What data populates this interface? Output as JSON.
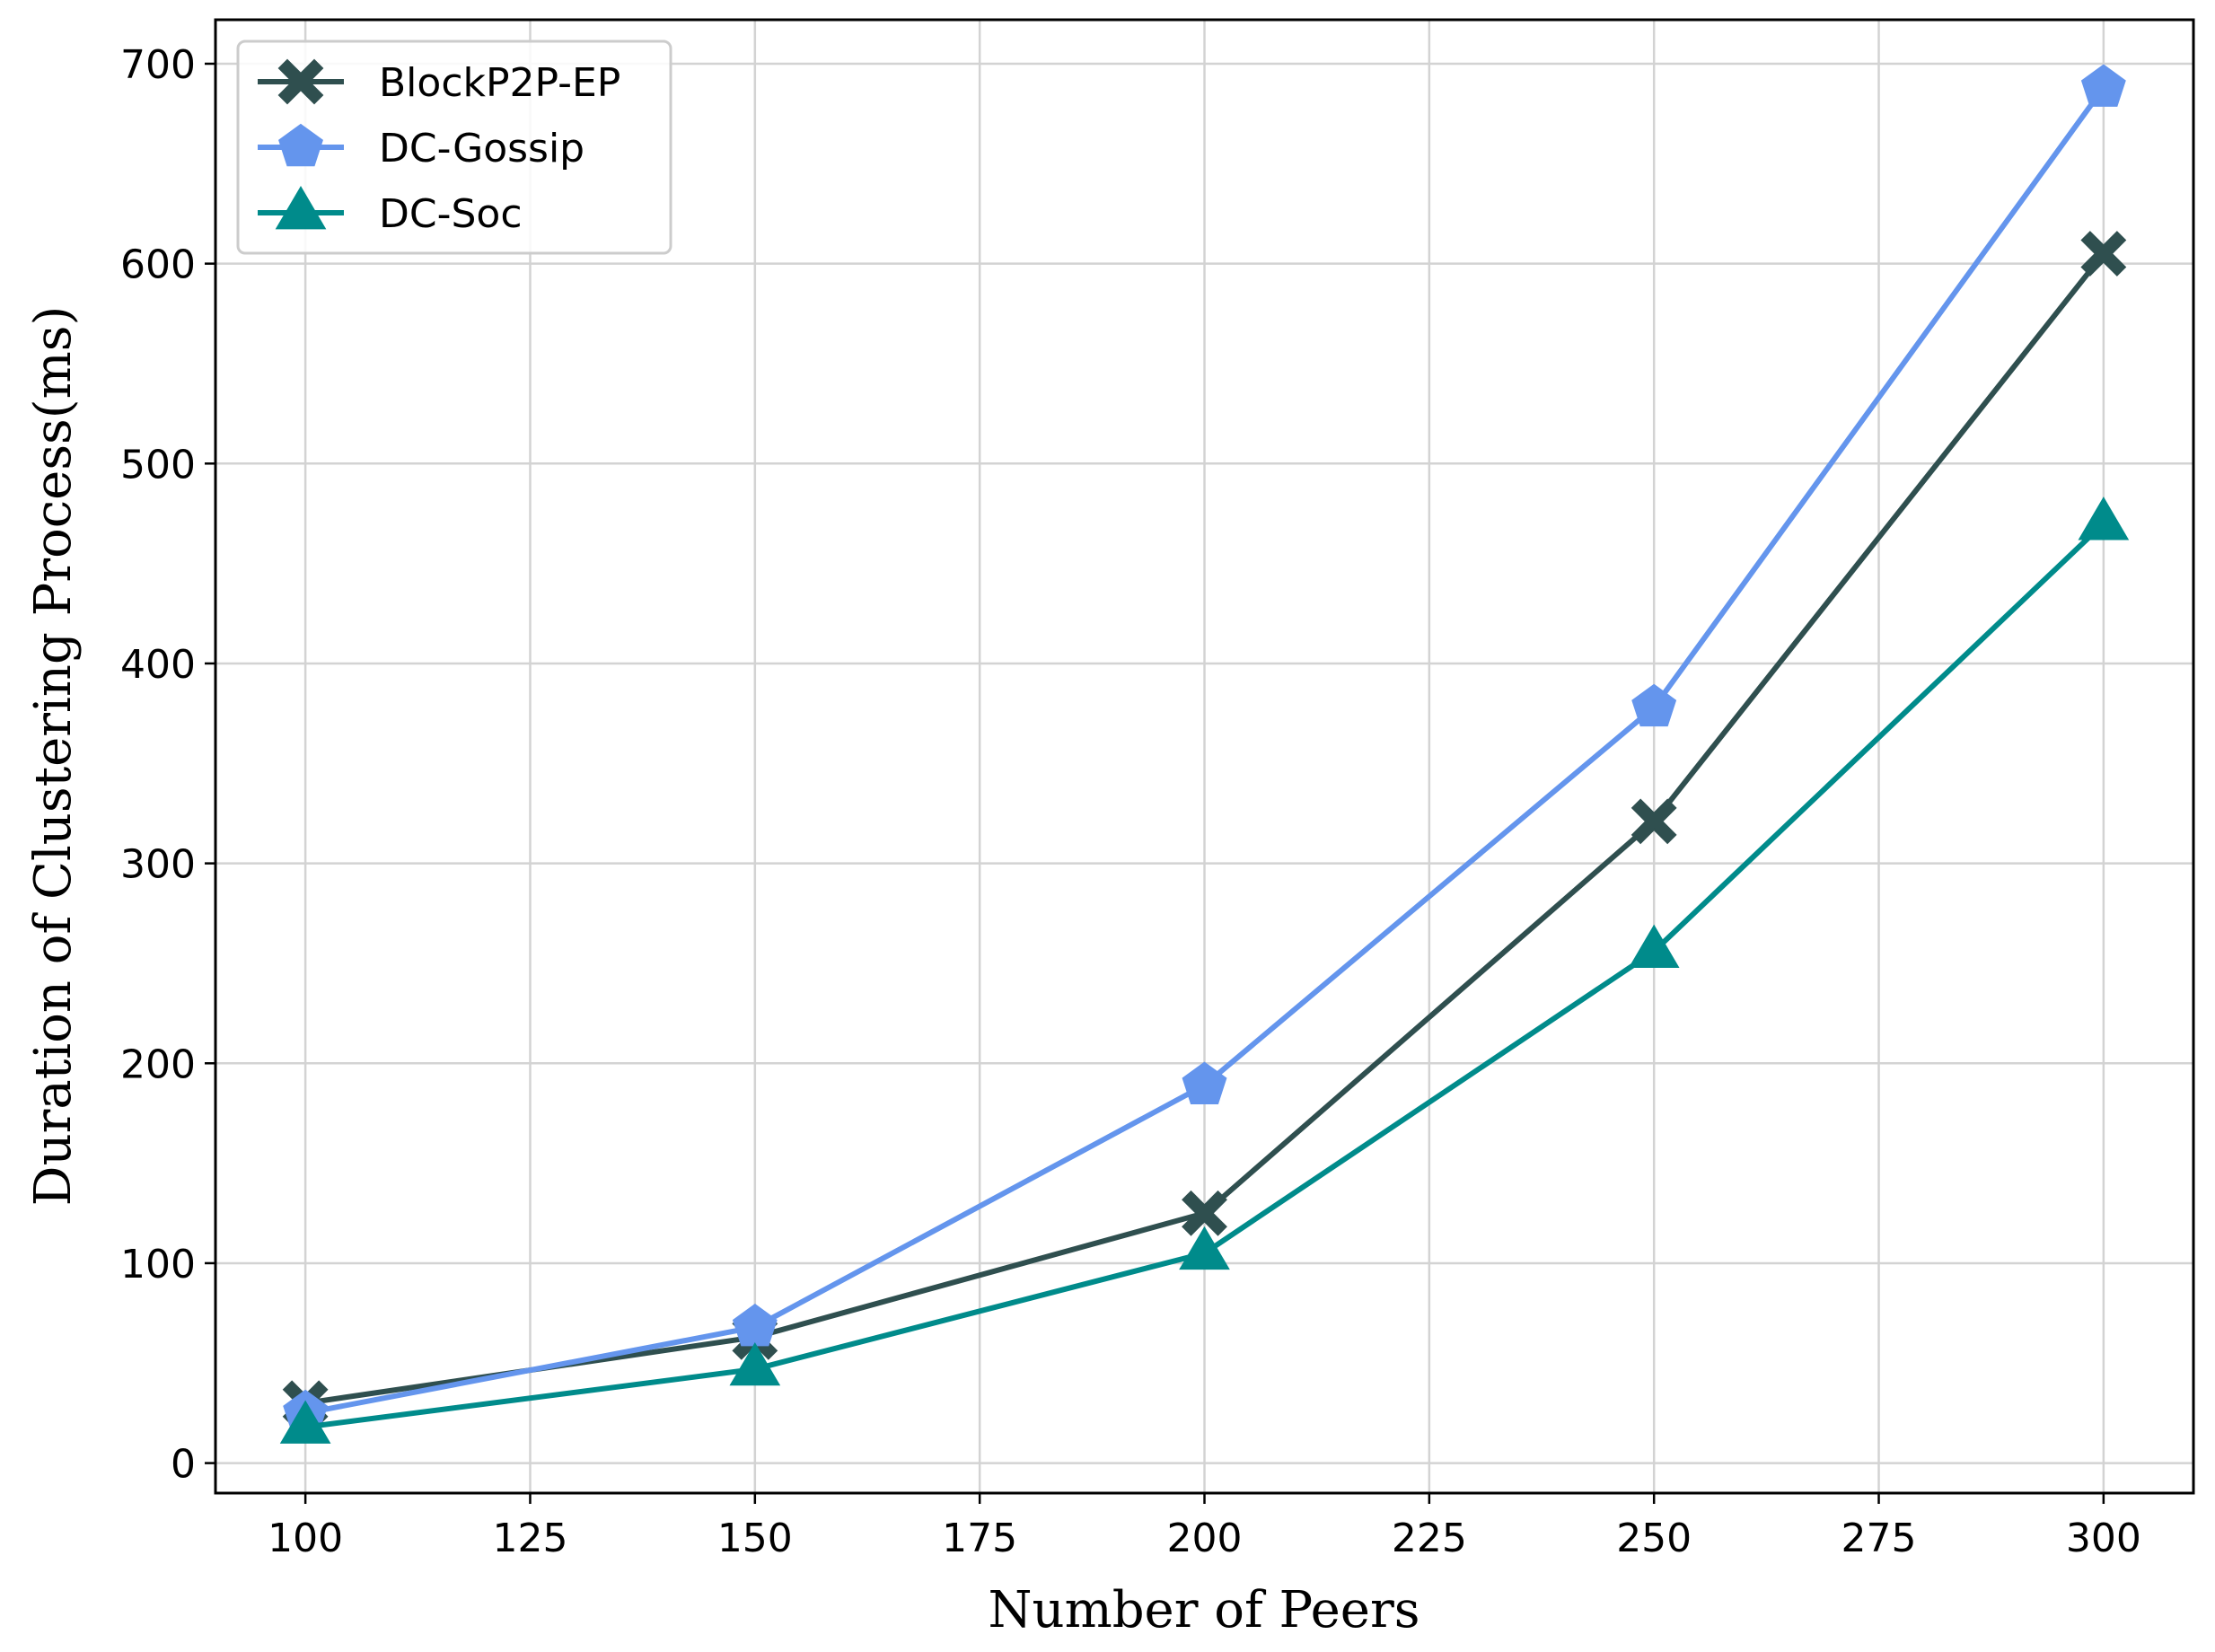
{
  "chart_data": {
    "type": "line",
    "title": "",
    "xlabel": "Number of Peers",
    "ylabel": "Duration of Clustering Process(ms)",
    "xlim": [
      90,
      310
    ],
    "ylim": [
      -15,
      722
    ],
    "xticks": [
      100,
      125,
      150,
      175,
      200,
      225,
      250,
      275,
      300
    ],
    "yticks": [
      0,
      100,
      200,
      300,
      400,
      500,
      600,
      700
    ],
    "grid": true,
    "legend_position": "top-left",
    "x": [
      100,
      150,
      200,
      250,
      300
    ],
    "series": [
      {
        "name": "BlockP2P-EP",
        "values": [
          30,
          63,
          125,
          321,
          605
        ],
        "color": "#2f4f4f",
        "marker": "x-filled"
      },
      {
        "name": "DC-Gossip",
        "values": [
          25,
          68,
          189,
          378,
          688
        ],
        "color": "#6495ed",
        "marker": "pentagon"
      },
      {
        "name": "DC-Soc",
        "values": [
          18,
          47,
          105,
          256,
          470
        ],
        "color": "#008b8b",
        "marker": "triangle-up"
      }
    ]
  }
}
